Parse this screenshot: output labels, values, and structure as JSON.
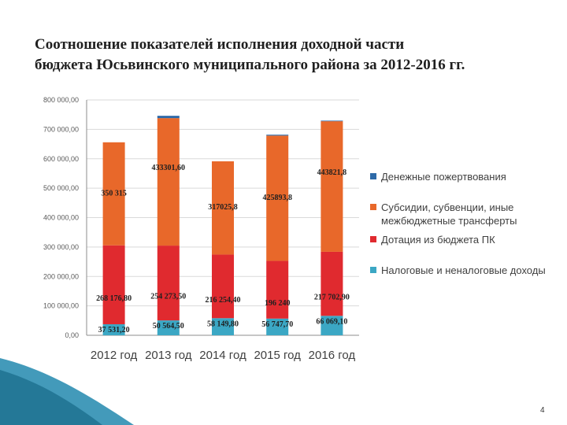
{
  "title_line1": "Соотношение показателей исполнения доходной части",
  "title_line2": "бюджета Юсьвинского муниципального района за 2012-2016 гг.",
  "page_number": "4",
  "colors": {
    "donations": "#2e6aa8",
    "subsidies": "#e8682a",
    "dotation": "#e02a2f",
    "tax": "#3ba7c4",
    "grid": "#d9d9d9",
    "axis": "#8c8c8c",
    "slide_accent": "#2f8fb2"
  },
  "legend": [
    {
      "key": "donations",
      "label": "Денежные пожертвования"
    },
    {
      "key": "subsidies",
      "label": "Субсидии, субвенции, иные межбюджетные трансферты"
    },
    {
      "key": "dotation",
      "label": "Дотация из бюджета ПК"
    },
    {
      "key": "tax",
      "label": "Налоговые и неналоговые доходы"
    }
  ],
  "chart_data": {
    "type": "bar",
    "stacked": true,
    "categories": [
      "2012 год",
      "2013 год",
      "2014 год",
      "2015 год",
      "2016 год"
    ],
    "series": [
      {
        "name": "Налоговые и неналоговые доходы",
        "color_key": "tax",
        "values": [
          37531.2,
          50564.5,
          58149.8,
          56747.7,
          66069.1
        ],
        "labels": [
          "37 531,20",
          "50 564,50",
          "58 149,80",
          "56 747,70",
          "66 069,10"
        ]
      },
      {
        "name": "Дотация из бюджета ПК",
        "color_key": "dotation",
        "values": [
          268176.8,
          254273.5,
          216254.4,
          196240,
          217702.9
        ],
        "labels": [
          "268 176,80",
          "254 273,50",
          "216 254,40",
          "196 240",
          "217 702,90"
        ]
      },
      {
        "name": "Субсидии, субвенции, иные межбюджетные трансферты",
        "color_key": "subsidies",
        "values": [
          350315,
          433301.6,
          317025.8,
          425893.8,
          443821.8
        ],
        "labels": [
          "350 315",
          "433301,60",
          "317025,8",
          "425893,8",
          "443821,8"
        ]
      },
      {
        "name": "Денежные пожертвования",
        "color_key": "donations",
        "values": [
          0,
          8000,
          0,
          3000,
          2000
        ],
        "labels": [
          "",
          "",
          "",
          "",
          ""
        ]
      }
    ],
    "y_ticks": [
      "0,00",
      "100 000,00",
      "200 000,00",
      "300 000,00",
      "400 000,00",
      "500 000,00",
      "600 000,00",
      "700 000,00",
      "800 000,00"
    ],
    "ylim": [
      0,
      800000
    ],
    "grid": true,
    "legend_position": "right"
  }
}
